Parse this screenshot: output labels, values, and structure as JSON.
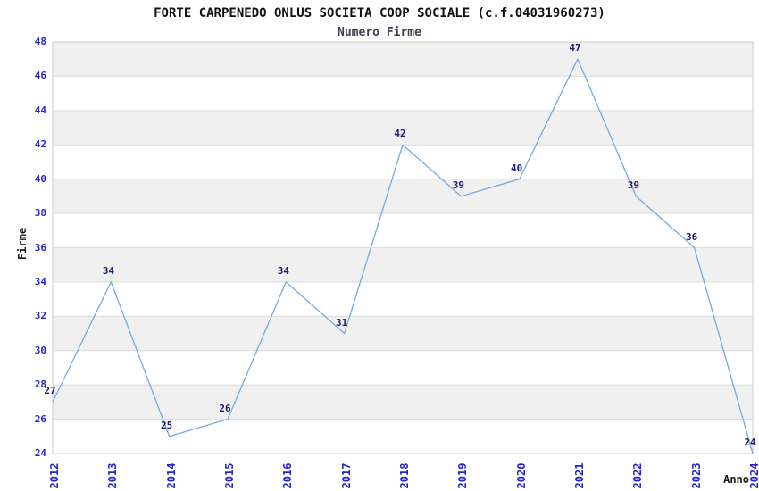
{
  "chart_data": {
    "type": "line",
    "title": "FORTE CARPENEDO ONLUS SOCIETA COOP SOCIALE (c.f.04031960273)",
    "subtitle": "Numero Firme",
    "xlabel": "Anno",
    "ylabel": "Firme",
    "x": [
      2012,
      2013,
      2014,
      2015,
      2016,
      2017,
      2018,
      2019,
      2020,
      2021,
      2022,
      2023,
      2024
    ],
    "values": [
      27,
      34,
      25,
      26,
      34,
      31,
      42,
      39,
      40,
      47,
      39,
      36,
      24
    ],
    "ylim": [
      24,
      48
    ],
    "ytick_step": 2,
    "grid": "horizontal-bands-alternating",
    "legend": "none",
    "data_labels_shown": true,
    "colors": {
      "line": "#74aae2",
      "tick_label": "#2424cf",
      "data_label": "#191970",
      "title": "#111111",
      "subtitle": "#3e3e52",
      "band_gray": "#f0f0f0",
      "band_white": "#ffffff",
      "grid_line": "#dcdcdc",
      "plot_border": "#cccccc",
      "axis_label": "#1a1a1a"
    }
  }
}
